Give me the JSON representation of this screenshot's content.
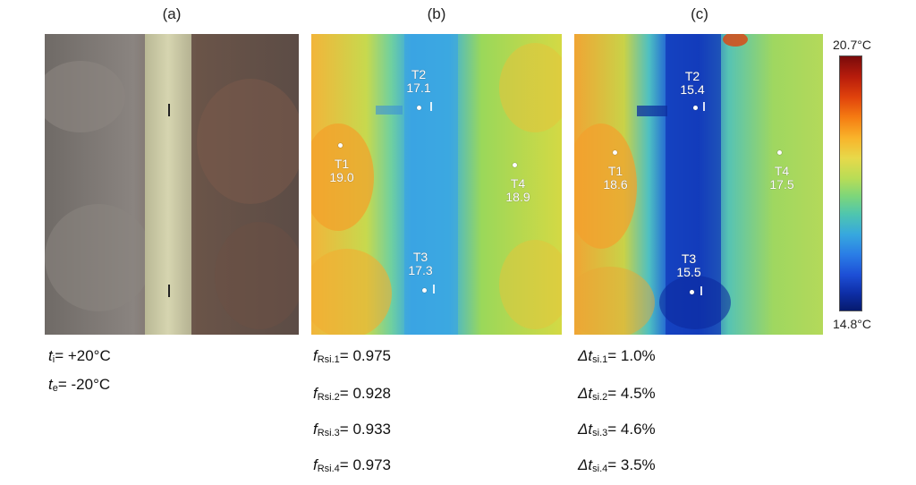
{
  "panels": {
    "a": {
      "label": "(a)"
    },
    "b": {
      "label": "(b)"
    },
    "c": {
      "label": "(c)"
    }
  },
  "points_b": [
    {
      "name": "T1",
      "value": "19.0"
    },
    {
      "name": "T2",
      "value": "17.1"
    },
    {
      "name": "T3",
      "value": "17.3"
    },
    {
      "name": "T4",
      "value": "18.9"
    }
  ],
  "points_c": [
    {
      "name": "T1",
      "value": "18.6"
    },
    {
      "name": "T2",
      "value": "15.4"
    },
    {
      "name": "T3",
      "value": "15.5"
    },
    {
      "name": "T4",
      "value": "17.5"
    }
  ],
  "colorbar": {
    "max": "20.7°C",
    "min": "14.8°C"
  },
  "conditions": {
    "ti_var": "t",
    "ti_sub": "i",
    "ti_value": "= +20°C",
    "te_var": "t",
    "te_sub": "e",
    "te_value": "= -20°C"
  },
  "frsi": [
    {
      "var": "f",
      "sub": "Rsi.1",
      "value": "= 0.975"
    },
    {
      "var": "f",
      "sub": "Rsi.2",
      "value": "= 0.928"
    },
    {
      "var": "f",
      "sub": "Rsi.3",
      "value": "= 0.933"
    },
    {
      "var": "f",
      "sub": "Rsi.4",
      "value": "= 0.973"
    }
  ],
  "dtsi": [
    {
      "var": "Δt",
      "sub": "si.1",
      "value": "= 1.0%"
    },
    {
      "var": "Δt",
      "sub": "si.2",
      "value": "= 4.5%"
    },
    {
      "var": "Δt",
      "sub": "si.3",
      "value": "= 4.6%"
    },
    {
      "var": "Δt",
      "sub": "si.4",
      "value": "= 3.5%"
    }
  ],
  "colors": {
    "warm": "#f5a623",
    "mid": "#9ad85a",
    "cool": "#3fa6e6",
    "cold": "#0b2a9e"
  }
}
